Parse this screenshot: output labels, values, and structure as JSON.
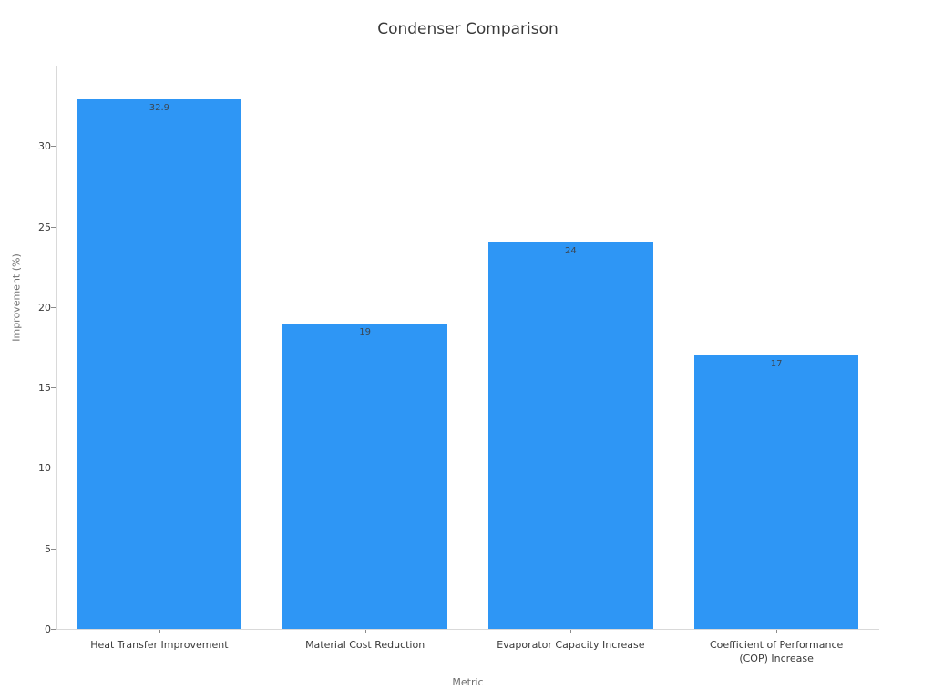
{
  "chart_data": {
    "type": "bar",
    "title": "Condenser Comparison",
    "xlabel": "Metric",
    "ylabel": "Improvement (%)",
    "categories": [
      "Heat Transfer Improvement",
      "Material Cost Reduction",
      "Evaporator Capacity Increase",
      "Coefficient of Performance\n(COP) Increase"
    ],
    "values": [
      32.9,
      19,
      24,
      17
    ],
    "value_labels": [
      "32.9",
      "19",
      "24",
      "17"
    ],
    "ylim": [
      0,
      35
    ],
    "yticks": [
      0,
      5,
      10,
      15,
      20,
      25,
      30
    ],
    "grid": false,
    "legend": false,
    "colors": {
      "bar_fill": "#2E96F5",
      "value_label": "#3b4754",
      "tick_label": "#3a3a3a",
      "axis_title": "#6e6e6e",
      "axis_line": "#d9d9d9",
      "tick_mark": "#8a8a8a",
      "title": "#3a3a3a"
    }
  }
}
